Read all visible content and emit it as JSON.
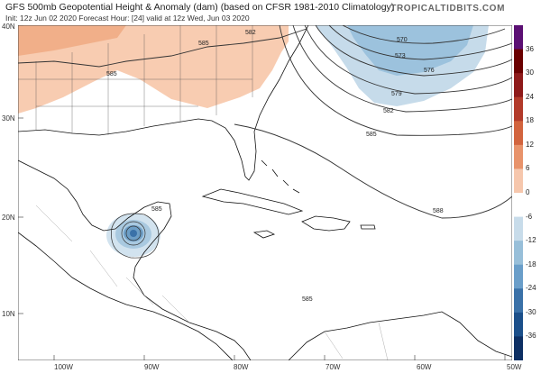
{
  "header": {
    "title": "GFS 500mb Geopotential Height & Anomaly (dam) (based on CFSR 1981-2010 Climatology)",
    "subtitle": "Init: 12z Jun 02 2020   Forecast Hour: [24]   valid at 12z Wed, Jun 03 2020",
    "brand": "TROPICALTIDBITS.COM"
  },
  "map": {
    "lat_labels": [
      "40N",
      "30N",
      "20N",
      "10N"
    ],
    "lon_labels": [
      "100W",
      "90W",
      "80W",
      "70W",
      "60W",
      "50W"
    ],
    "contour_labels": [
      "585",
      "582",
      "585",
      "570",
      "573",
      "576",
      "579",
      "582",
      "585",
      "588",
      "585",
      "585"
    ]
  },
  "colorbar": {
    "labels": [
      "36",
      "30",
      "24",
      "18",
      "12",
      "6",
      "0",
      "-6",
      "-12",
      "-18",
      "-24",
      "-30",
      "-36"
    ],
    "colors": [
      "#5b0f73",
      "#6a0000",
      "#8e1a1a",
      "#b23a2a",
      "#d2643e",
      "#e8936b",
      "#f6c7ad",
      "#ffffff",
      "#c8dcea",
      "#98bfd9",
      "#6a9ec9",
      "#3a71a8",
      "#1b4f8a",
      "#0d2f63"
    ]
  }
}
